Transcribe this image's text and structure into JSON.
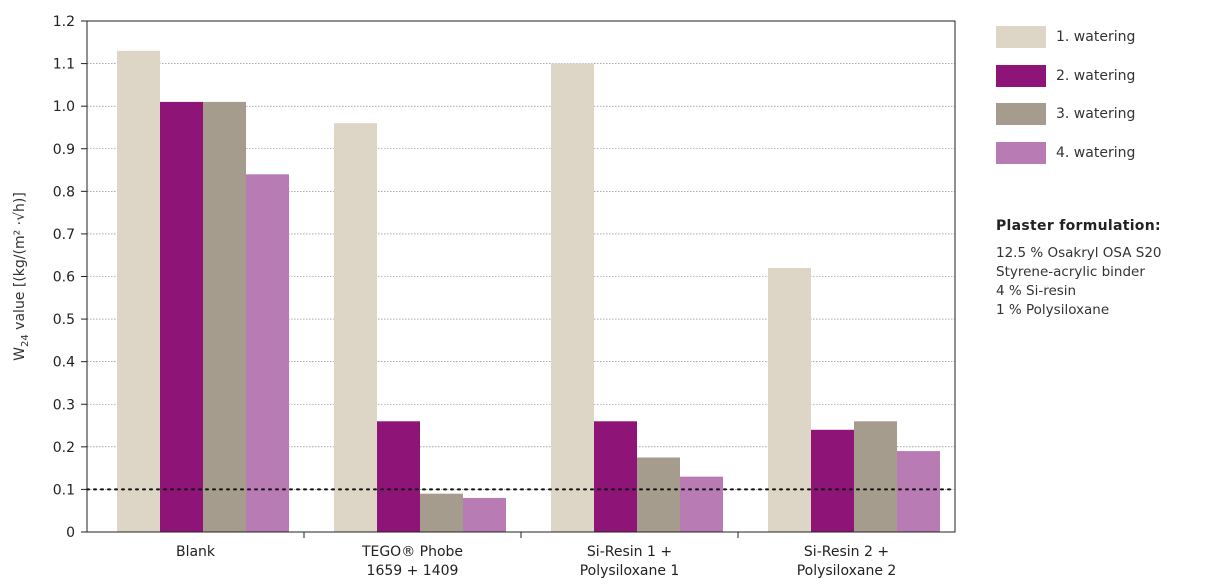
{
  "chart_data": {
    "type": "bar",
    "ylabel_main": "W",
    "ylabel_sub": "24",
    "ylabel_rest": " value [(kg/(m² ·√h)]",
    "ylim": [
      0,
      1.2
    ],
    "yticks": [
      "0",
      "0.1",
      "0.2",
      "0.3",
      "0.4",
      "0.5",
      "0.6",
      "0.7",
      "0.8",
      "0.9",
      "1.0",
      "1.1",
      "1.2"
    ],
    "grid": true,
    "reference_line": 0.1,
    "legend_position": "right",
    "categories": [
      [
        "Blank"
      ],
      [
        "TEGO® Phobe",
        "1659 + 1409"
      ],
      [
        "Si-Resin 1 +",
        "Polysiloxane 1"
      ],
      [
        "Si-Resin 2 +",
        "Polysiloxane 2"
      ]
    ],
    "series": [
      {
        "name": "1. watering",
        "color": "#ddd5c6",
        "values": [
          1.13,
          0.96,
          1.1,
          0.62
        ]
      },
      {
        "name": "2. watering",
        "color": "#8e1478",
        "values": [
          1.01,
          0.26,
          0.26,
          0.24
        ]
      },
      {
        "name": "3. watering",
        "color": "#a59c8d",
        "values": [
          1.01,
          0.09,
          0.175,
          0.26
        ]
      },
      {
        "name": "4. watering",
        "color": "#b97bb3",
        "values": [
          0.84,
          0.08,
          0.13,
          0.19
        ]
      }
    ]
  },
  "notes": {
    "title": "Plaster formulation:",
    "lines": [
      "12.5 % Osakryl OSA S20",
      "Styrene-acrylic binder",
      "4 % Si-resin",
      "1 % Polysiloxane"
    ]
  }
}
